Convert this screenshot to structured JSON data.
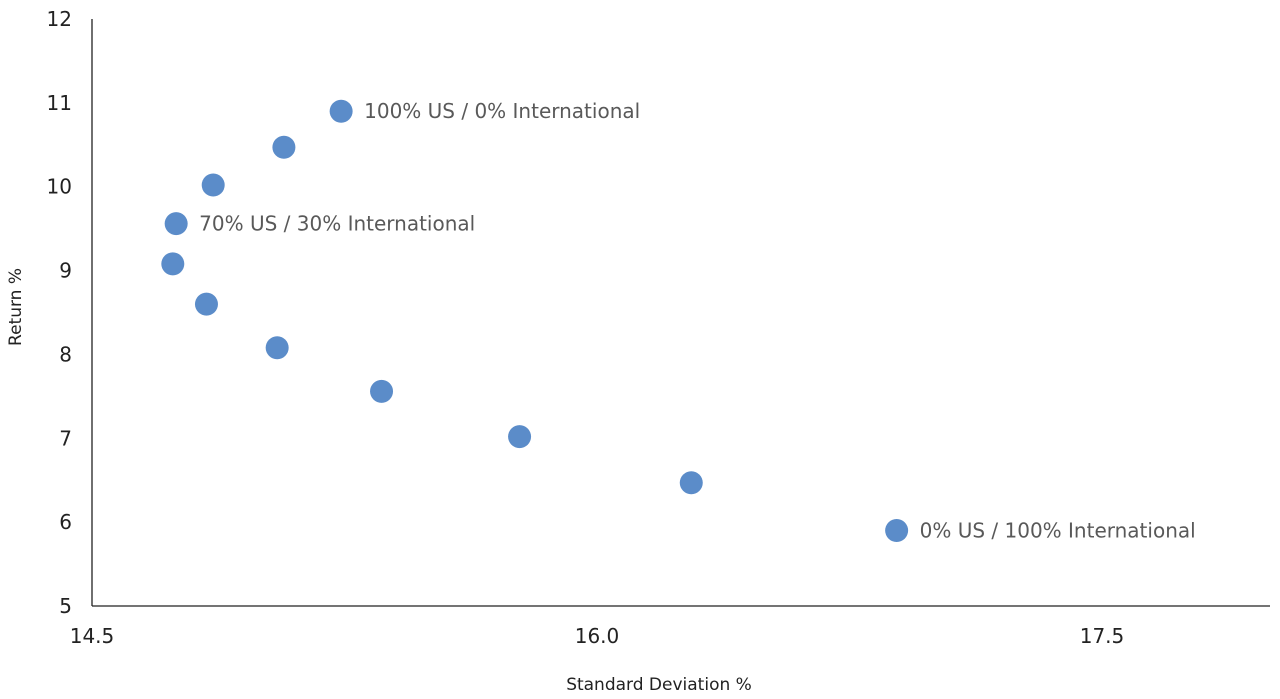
{
  "chart_data": {
    "type": "scatter",
    "xlabel": "Standard Deviation %",
    "ylabel": "Return %",
    "xlim": [
      14.5,
      18.0
    ],
    "ylim": [
      5,
      12
    ],
    "xticks": [
      "14.5",
      "16.0",
      "17.5"
    ],
    "yticks": [
      "5",
      "6",
      "7",
      "8",
      "9",
      "10",
      "11",
      "12"
    ],
    "grid": false,
    "marker_color": "#5B8CC9",
    "label_color": "#595959",
    "points": [
      {
        "x": 15.24,
        "y": 10.9,
        "label": "100% US / 0% International"
      },
      {
        "x": 15.07,
        "y": 10.47,
        "label": ""
      },
      {
        "x": 14.86,
        "y": 10.02,
        "label": ""
      },
      {
        "x": 14.75,
        "y": 9.56,
        "label": "70% US / 30% International"
      },
      {
        "x": 14.74,
        "y": 9.08,
        "label": ""
      },
      {
        "x": 14.84,
        "y": 8.6,
        "label": ""
      },
      {
        "x": 15.05,
        "y": 8.08,
        "label": ""
      },
      {
        "x": 15.36,
        "y": 7.56,
        "label": ""
      },
      {
        "x": 15.77,
        "y": 7.02,
        "label": ""
      },
      {
        "x": 16.28,
        "y": 6.47,
        "label": ""
      },
      {
        "x": 16.89,
        "y": 5.9,
        "label": "0% US / 100% International"
      }
    ]
  }
}
